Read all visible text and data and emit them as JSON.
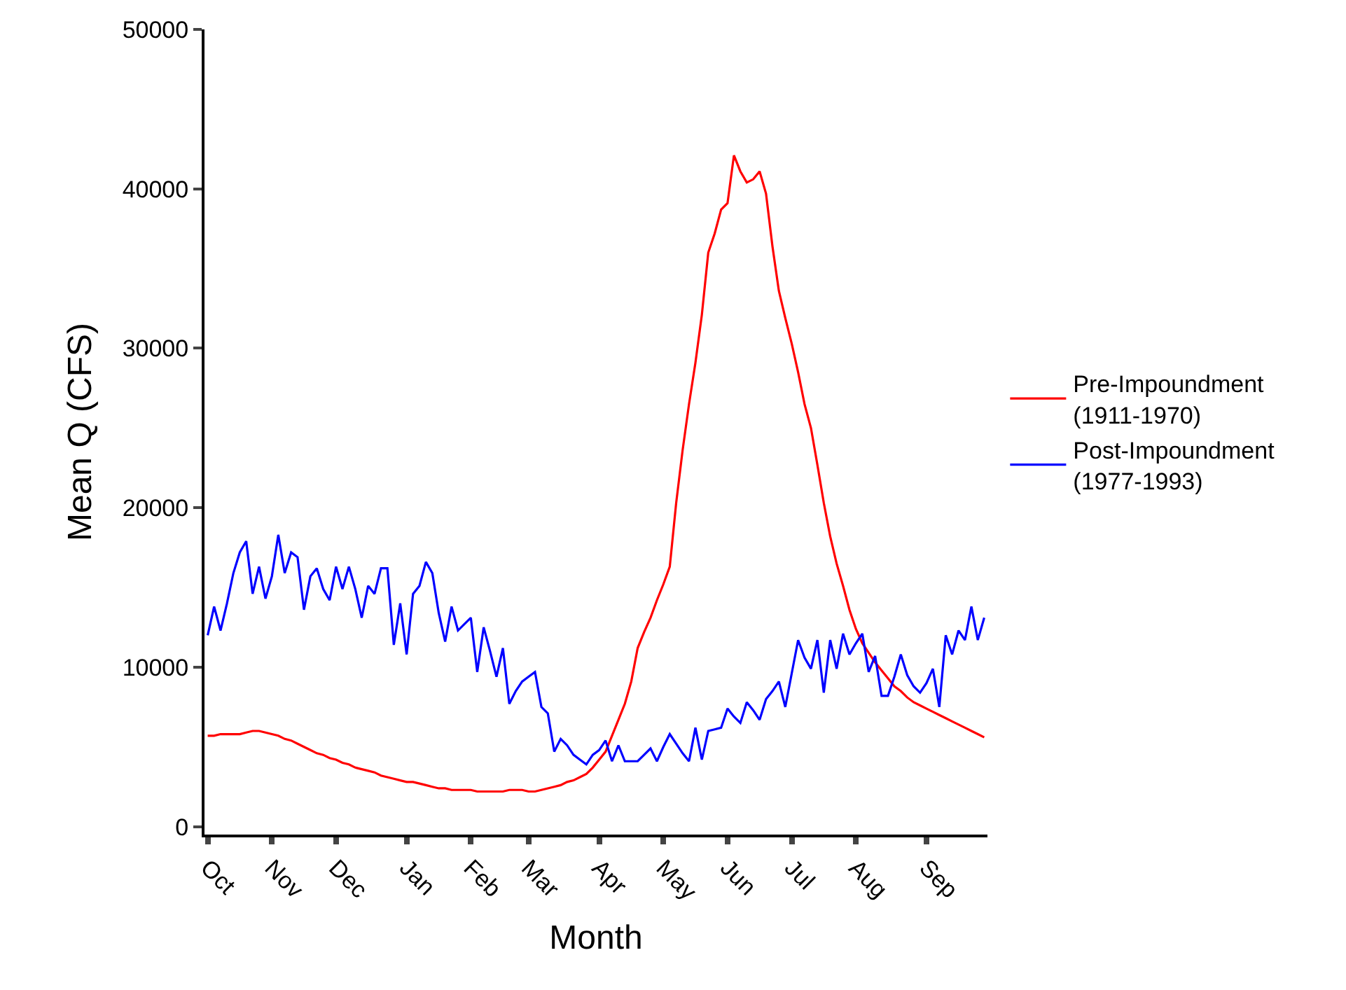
{
  "chart_data": {
    "type": "line",
    "xlabel": "Month",
    "ylabel": "Mean Q (CFS)",
    "categories": [
      "Oct",
      null,
      null,
      null,
      null,
      null,
      null,
      null,
      null,
      null,
      "Nov",
      null,
      null,
      null,
      null,
      null,
      null,
      null,
      null,
      null,
      "Dec",
      null,
      null,
      null,
      null,
      null,
      null,
      null,
      null,
      null,
      null,
      "Jan",
      null,
      null,
      null,
      null,
      null,
      null,
      null,
      null,
      null,
      "Feb",
      null,
      null,
      null,
      null,
      null,
      null,
      null,
      null,
      "Mar",
      null,
      null,
      null,
      null,
      null,
      null,
      null,
      null,
      null,
      null,
      "Apr",
      null,
      null,
      null,
      null,
      null,
      null,
      null,
      null,
      null,
      "May",
      null,
      null,
      null,
      null,
      null,
      null,
      null,
      null,
      null,
      "Jun",
      null,
      null,
      null,
      null,
      null,
      null,
      null,
      null,
      null,
      "Jul",
      null,
      null,
      null,
      null,
      null,
      null,
      null,
      null,
      null,
      "Aug",
      null,
      null,
      null,
      null,
      null,
      null,
      null,
      null,
      null,
      null,
      "Sep",
      null,
      null,
      null,
      null,
      null,
      null,
      null,
      null,
      null
    ],
    "ylim": [
      -500,
      50000
    ],
    "yticks": [
      0,
      10000,
      20000,
      30000,
      40000,
      50000
    ],
    "grid": false,
    "legend": "right",
    "marker": "none",
    "line_style": "solid",
    "series": [
      {
        "name": "Pre-Impoundment\n(1911-1970)",
        "color": "#ff0000",
        "values": [
          5700,
          5700,
          5800,
          5800,
          5800,
          5800,
          5900,
          6000,
          6000,
          5900,
          5800,
          5700,
          5500,
          5400,
          5200,
          5000,
          4800,
          4600,
          4500,
          4300,
          4200,
          4000,
          3900,
          3700,
          3600,
          3500,
          3400,
          3200,
          3100,
          3000,
          2900,
          2800,
          2800,
          2700,
          2600,
          2500,
          2400,
          2400,
          2300,
          2300,
          2300,
          2300,
          2200,
          2200,
          2200,
          2200,
          2200,
          2300,
          2300,
          2300,
          2200,
          2200,
          2300,
          2400,
          2500,
          2600,
          2800,
          2900,
          3100,
          3300,
          3700,
          4200,
          4700,
          5700,
          6700,
          7700,
          9100,
          11200,
          12200,
          13100,
          14200,
          15200,
          16300,
          20300,
          23600,
          26500,
          29100,
          32100,
          36000,
          37200,
          38700,
          39100,
          42100,
          41100,
          40400,
          40600,
          41100,
          39700,
          36400,
          33600,
          31900,
          30300,
          28500,
          26500,
          25000,
          22700,
          20300,
          18200,
          16500,
          15100,
          13600,
          12400,
          11500,
          10900,
          10300,
          9800,
          9300,
          8800,
          8500,
          8100,
          7800,
          7600,
          7400,
          7200,
          7000,
          6800,
          6600,
          6400,
          6200,
          6000,
          5800,
          5600
        ]
      },
      {
        "name": "Post-Impoundment\n(1977-1993)",
        "color": "#0000ff",
        "values": [
          12000,
          13800,
          12300,
          14000,
          15900,
          17200,
          17900,
          14600,
          16300,
          14300,
          15700,
          18300,
          15900,
          17200,
          16900,
          13600,
          15700,
          16200,
          14900,
          14200,
          16300,
          14900,
          16300,
          14900,
          13100,
          15100,
          14600,
          16200,
          16200,
          11400,
          14000,
          10800,
          14600,
          15100,
          16600,
          15900,
          13400,
          11600,
          13800,
          12300,
          12700,
          13100,
          9700,
          12500,
          11000,
          9400,
          11200,
          7700,
          8500,
          9100,
          9400,
          9700,
          7500,
          7100,
          4700,
          5500,
          5100,
          4500,
          4200,
          3900,
          4500,
          4800,
          5400,
          4100,
          5100,
          4100,
          4100,
          4100,
          4500,
          4900,
          4100,
          5000,
          5800,
          5200,
          4600,
          4100,
          6200,
          4200,
          6000,
          6100,
          6200,
          7400,
          6900,
          6500,
          7800,
          7300,
          6700,
          8000,
          8500,
          9100,
          7500,
          9600,
          11700,
          10600,
          9900,
          11700,
          8400,
          11700,
          9900,
          12100,
          10800,
          11500,
          12100,
          9700,
          10700,
          8200,
          8200,
          9400,
          10800,
          9500,
          8800,
          8400,
          9000,
          9900,
          7500,
          12000,
          10800,
          12300,
          11700,
          13800,
          11700,
          13100
        ]
      }
    ]
  }
}
